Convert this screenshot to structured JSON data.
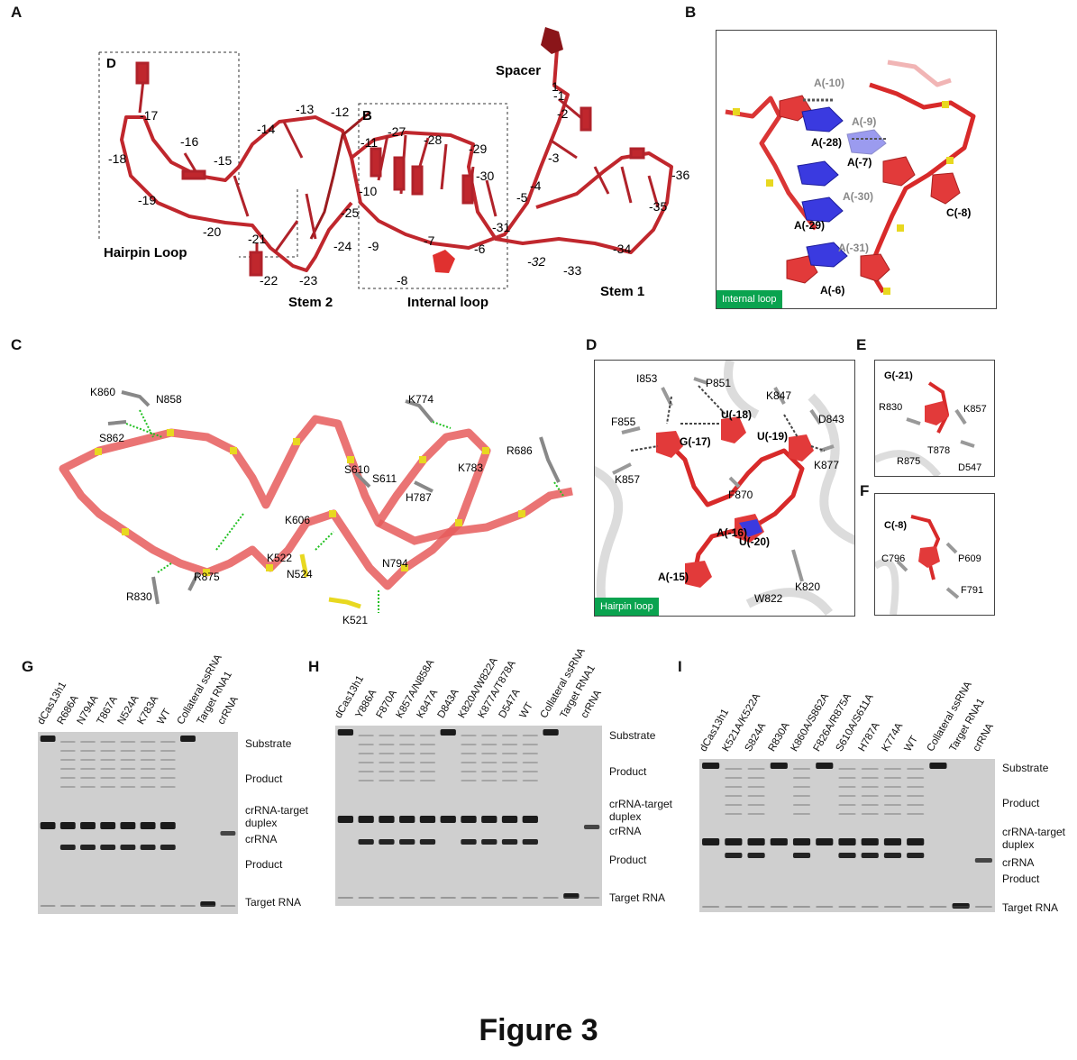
{
  "figure_title": "Figure 3",
  "panels": {
    "A": {
      "label": "A",
      "region_labels": [
        "D",
        "B",
        "Spacer",
        "Hairpin Loop",
        "Stem 2",
        "Internal loop",
        "Stem 1"
      ],
      "nucleotides": [
        "1",
        "-1",
        "-2",
        "-3",
        "-4",
        "-5",
        "-6",
        "-7",
        "-8",
        "-9",
        "-10",
        "-11",
        "-12",
        "-13",
        "-14",
        "-15",
        "-16",
        "-17",
        "-18",
        "-19",
        "-20",
        "-21",
        "-22",
        "-23",
        "-24",
        "-25",
        "-27",
        "-28",
        "-29",
        "-30",
        "-31",
        "-32",
        "-33",
        "-34",
        "-35",
        "-36"
      ]
    },
    "B": {
      "label": "B",
      "tag": "Internal loop",
      "residues": [
        "A(-10)",
        "A(-9)",
        "A(-28)",
        "A(-7)",
        "A(-30)",
        "C(-8)",
        "A(-29)",
        "A(-31)",
        "A(-6)"
      ]
    },
    "C": {
      "label": "C",
      "residues": [
        "K860",
        "N858",
        "S862",
        "K774",
        "R686",
        "S610",
        "S611",
        "K783",
        "H787",
        "K606",
        "R875",
        "R830",
        "K522",
        "N524",
        "N794",
        "K521"
      ]
    },
    "D": {
      "label": "D",
      "tag": "Hairpin loop",
      "residues": [
        "I853",
        "P851",
        "K847",
        "F855",
        "U(-18)",
        "U(-19)",
        "D843",
        "G(-17)",
        "K877",
        "K857",
        "F870",
        "A(-16)",
        "U(-20)",
        "A(-15)",
        "K820",
        "W822"
      ]
    },
    "E": {
      "label": "E",
      "residues": [
        "G(-21)",
        "R830",
        "K857",
        "T878",
        "R875",
        "D547"
      ]
    },
    "F": {
      "label": "F",
      "residues": [
        "C(-8)",
        "C796",
        "P609",
        "F791"
      ]
    },
    "G": {
      "label": "G",
      "lanes": [
        "dCas13h1",
        "R686A",
        "N794A",
        "T867A",
        "N524A",
        "K783A",
        "WT",
        "Collateral ssRNA",
        "Target RNA1",
        "crRNA"
      ],
      "annotations": [
        "Substrate",
        "Product",
        "crRNA-target duplex",
        "crRNA",
        "Product",
        "Target RNA"
      ]
    },
    "H": {
      "label": "H",
      "lanes": [
        "dCas13h1",
        "Y886A",
        "F870A",
        "K857A/N858A",
        "K847A",
        "D843A",
        "K820A/W822A",
        "K877A/T878A",
        "D547A",
        "WT",
        "Collateral ssRNA",
        "Target RNA1",
        "crRNA"
      ],
      "annotations": [
        "Substrate",
        "Product",
        "crRNA-target duplex",
        "crRNA",
        "Product",
        "Target RNA"
      ]
    },
    "I": {
      "label": "I",
      "lanes": [
        "dCas13h1",
        "K521A/K522A",
        "S824A",
        "R830A",
        "K860A/S862A",
        "F826A/R875A",
        "S610A/S611A",
        "H787A",
        "K774A",
        "WT",
        "Collateral ssRNA",
        "Target RNA1",
        "crRNA"
      ],
      "annotations": [
        "Substrate",
        "Product",
        "crRNA-target duplex",
        "crRNA",
        "Product",
        "Target RNA"
      ]
    }
  }
}
